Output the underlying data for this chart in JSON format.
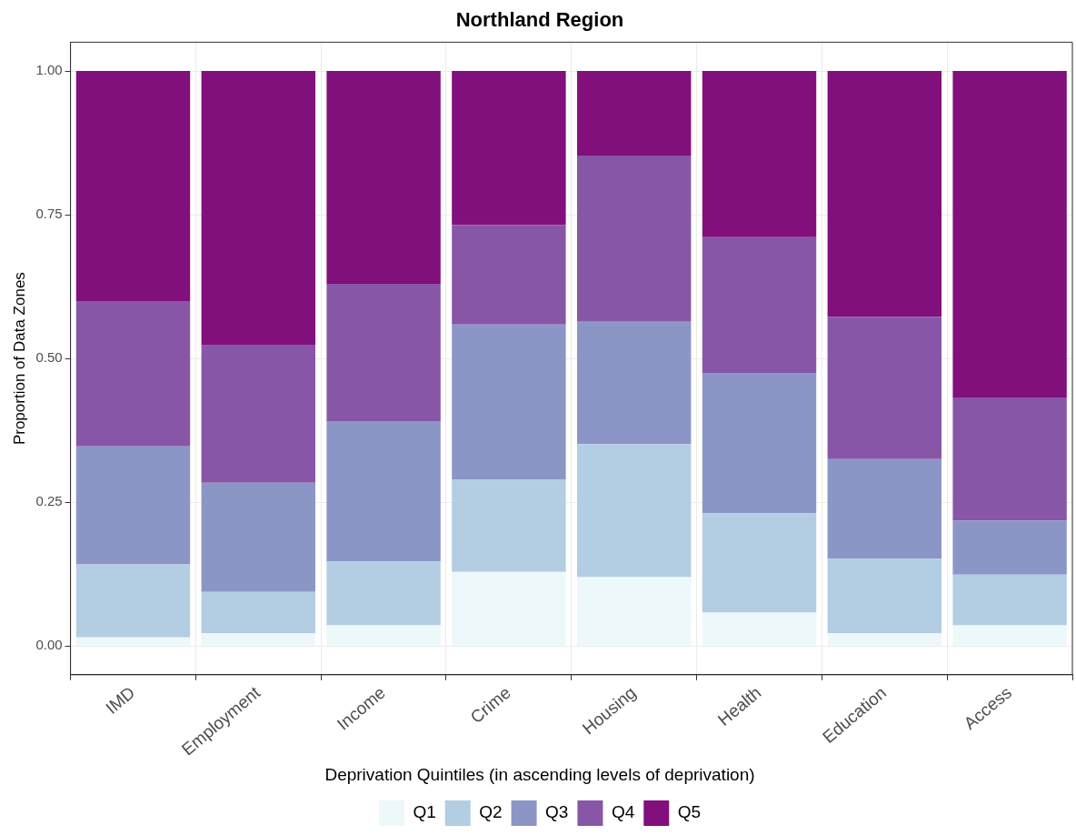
{
  "chart_data": {
    "type": "bar",
    "title": "Northland Region",
    "ylabel": "Proportion of Data Zones",
    "legend_title": "Deprivation Quintiles (in ascending levels of deprivation)",
    "categories": [
      "IMD",
      "Employment",
      "Income",
      "Crime",
      "Housing",
      "Health",
      "Education",
      "Access"
    ],
    "series": [
      {
        "name": "Q1",
        "color": "#edf8fb",
        "values": [
          0.015,
          0.022,
          0.036,
          0.129,
          0.12,
          0.058,
          0.022,
          0.036
        ]
      },
      {
        "name": "Q2",
        "color": "#b3cde3",
        "values": [
          0.127,
          0.072,
          0.111,
          0.16,
          0.231,
          0.173,
          0.13,
          0.088
        ]
      },
      {
        "name": "Q3",
        "color": "#8c96c6",
        "values": [
          0.205,
          0.19,
          0.244,
          0.27,
          0.213,
          0.244,
          0.173,
          0.094
        ]
      },
      {
        "name": "Q4",
        "color": "#8856a7",
        "values": [
          0.253,
          0.24,
          0.239,
          0.173,
          0.289,
          0.236,
          0.247,
          0.213
        ]
      },
      {
        "name": "Q5",
        "color": "#810f7c",
        "values": [
          0.4,
          0.476,
          0.37,
          0.268,
          0.147,
          0.289,
          0.428,
          0.569
        ]
      }
    ],
    "stacked": true,
    "ylim": [
      -0.05,
      1.05
    ],
    "yticks": [
      {
        "value": 0,
        "label": "0.00"
      },
      {
        "value": 0.25,
        "label": "0.25"
      },
      {
        "value": 0.5,
        "label": "0.50"
      },
      {
        "value": 0.75,
        "label": "0.75"
      },
      {
        "value": 1,
        "label": "1.00"
      }
    ],
    "grid": true,
    "legend": "bottom"
  }
}
